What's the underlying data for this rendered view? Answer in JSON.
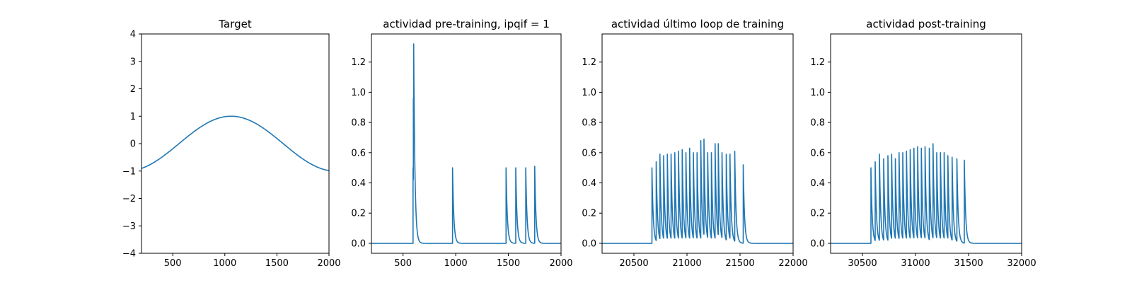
{
  "figure": {
    "background": "#ffffff",
    "line_color": "#1f77b4"
  },
  "chart_data": [
    {
      "type": "line",
      "title": "Target",
      "xlim": [
        200,
        2000
      ],
      "ylim": [
        -4,
        4
      ],
      "xticks": [
        500,
        1000,
        1500,
        2000
      ],
      "yticks": [
        -4,
        -3,
        -2,
        -1,
        0,
        1,
        2,
        3,
        4
      ],
      "series": [
        {
          "kind": "sine",
          "amplitude": 1.0,
          "peak_x": 1060,
          "period": 2000,
          "x_start": 200,
          "x_end": 2000
        }
      ]
    },
    {
      "type": "line",
      "title": "actividad pre-training, ipqif = 1",
      "xlim": [
        200,
        2000
      ],
      "ylim": [
        -0.066,
        1.386
      ],
      "xticks": [
        500,
        1000,
        1500,
        2000
      ],
      "yticks": [
        0.0,
        0.2,
        0.4,
        0.6,
        0.8,
        1.0,
        1.2
      ],
      "series": [
        {
          "kind": "spike_train",
          "x_start": 200,
          "x_end": 2000,
          "decay": 12,
          "spikes": [
            {
              "t": 595,
              "peak": 0.5
            },
            {
              "t": 598,
              "peak": 0.96
            },
            {
              "t": 601,
              "peak": 1.32
            },
            {
              "t": 970,
              "peak": 0.5
            },
            {
              "t": 1478,
              "peak": 0.5
            },
            {
              "t": 1570,
              "peak": 0.5
            },
            {
              "t": 1665,
              "peak": 0.5
            },
            {
              "t": 1750,
              "peak": 0.51
            }
          ]
        }
      ]
    },
    {
      "type": "line",
      "title": "actividad último loop de training",
      "xlim": [
        20200,
        22000
      ],
      "ylim": [
        -0.066,
        1.386
      ],
      "xticks": [
        20500,
        21000,
        21500,
        22000
      ],
      "yticks": [
        0.0,
        0.2,
        0.4,
        0.6,
        0.8,
        1.0,
        1.2
      ],
      "series": [
        {
          "kind": "spike_train",
          "x_start": 20200,
          "x_end": 22000,
          "decay": 12,
          "spikes": [
            {
              "t": 20670,
              "peak": 0.5
            },
            {
              "t": 20710,
              "peak": 0.54
            },
            {
              "t": 20745,
              "peak": 0.59
            },
            {
              "t": 20780,
              "peak": 0.58
            },
            {
              "t": 20815,
              "peak": 0.59
            },
            {
              "t": 20850,
              "peak": 0.59
            },
            {
              "t": 20885,
              "peak": 0.6
            },
            {
              "t": 20920,
              "peak": 0.61
            },
            {
              "t": 20955,
              "peak": 0.62
            },
            {
              "t": 20990,
              "peak": 0.6
            },
            {
              "t": 21025,
              "peak": 0.63
            },
            {
              "t": 21060,
              "peak": 0.6
            },
            {
              "t": 21095,
              "peak": 0.6
            },
            {
              "t": 21130,
              "peak": 0.68
            },
            {
              "t": 21160,
              "peak": 0.69
            },
            {
              "t": 21195,
              "peak": 0.6
            },
            {
              "t": 21230,
              "peak": 0.6
            },
            {
              "t": 21265,
              "peak": 0.66
            },
            {
              "t": 21295,
              "peak": 0.66
            },
            {
              "t": 21330,
              "peak": 0.6
            },
            {
              "t": 21370,
              "peak": 0.59
            },
            {
              "t": 21405,
              "peak": 0.59
            },
            {
              "t": 21450,
              "peak": 0.61
            },
            {
              "t": 21530,
              "peak": 0.52
            }
          ]
        }
      ]
    },
    {
      "type": "line",
      "title": "actividad post-training",
      "xlim": [
        30200,
        32000
      ],
      "ylim": [
        -0.066,
        1.386
      ],
      "xticks": [
        30500,
        31000,
        31500,
        32000
      ],
      "yticks": [
        0.0,
        0.2,
        0.4,
        0.6,
        0.8,
        1.0,
        1.2
      ],
      "series": [
        {
          "kind": "spike_train",
          "x_start": 30200,
          "x_end": 32000,
          "decay": 12,
          "spikes": [
            {
              "t": 30580,
              "peak": 0.5
            },
            {
              "t": 30620,
              "peak": 0.54
            },
            {
              "t": 30660,
              "peak": 0.59
            },
            {
              "t": 30700,
              "peak": 0.56
            },
            {
              "t": 30740,
              "peak": 0.58
            },
            {
              "t": 30775,
              "peak": 0.59
            },
            {
              "t": 30810,
              "peak": 0.56
            },
            {
              "t": 30845,
              "peak": 0.6
            },
            {
              "t": 30880,
              "peak": 0.6
            },
            {
              "t": 30915,
              "peak": 0.61
            },
            {
              "t": 30950,
              "peak": 0.62
            },
            {
              "t": 30985,
              "peak": 0.63
            },
            {
              "t": 31020,
              "peak": 0.64
            },
            {
              "t": 31055,
              "peak": 0.63
            },
            {
              "t": 31090,
              "peak": 0.64
            },
            {
              "t": 31130,
              "peak": 0.63
            },
            {
              "t": 31165,
              "peak": 0.66
            },
            {
              "t": 31200,
              "peak": 0.6
            },
            {
              "t": 31235,
              "peak": 0.6
            },
            {
              "t": 31270,
              "peak": 0.6
            },
            {
              "t": 31305,
              "peak": 0.58
            },
            {
              "t": 31345,
              "peak": 0.57
            },
            {
              "t": 31390,
              "peak": 0.56
            },
            {
              "t": 31460,
              "peak": 0.55
            }
          ]
        }
      ]
    }
  ]
}
